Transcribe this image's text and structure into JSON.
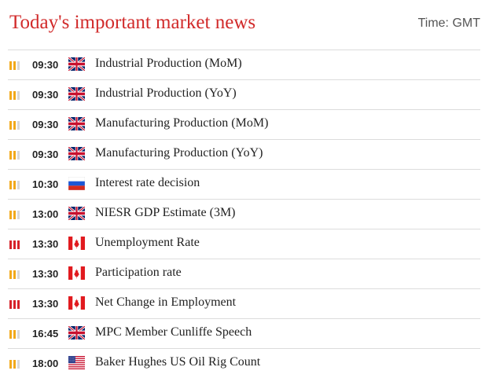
{
  "header": {
    "title": "Today's important market news",
    "timezone": "Time: GMT"
  },
  "importance_colors": {
    "medium": "#f2a91b",
    "high": "#d6232a",
    "inactive": "#d8d8d8"
  },
  "events": [
    {
      "importance": 2,
      "time": "09:30",
      "flag": "uk-flag-icon",
      "event": "Industrial Production (MoM)"
    },
    {
      "importance": 2,
      "time": "09:30",
      "flag": "uk-flag-icon",
      "event": "Industrial Production (YoY)"
    },
    {
      "importance": 2,
      "time": "09:30",
      "flag": "uk-flag-icon",
      "event": "Manufacturing Production (MoM)"
    },
    {
      "importance": 2,
      "time": "09:30",
      "flag": "uk-flag-icon",
      "event": "Manufacturing Production (YoY)"
    },
    {
      "importance": 2,
      "time": "10:30",
      "flag": "russia-flag-icon",
      "event": "Interest rate decision"
    },
    {
      "importance": 2,
      "time": "13:00",
      "flag": "uk-flag-icon",
      "event": "NIESR GDP Estimate (3M)"
    },
    {
      "importance": 3,
      "time": "13:30",
      "flag": "canada-flag-icon",
      "event": "Unemployment Rate"
    },
    {
      "importance": 2,
      "time": "13:30",
      "flag": "canada-flag-icon",
      "event": "Participation rate"
    },
    {
      "importance": 3,
      "time": "13:30",
      "flag": "canada-flag-icon",
      "event": "Net Change in Employment"
    },
    {
      "importance": 2,
      "time": "16:45",
      "flag": "uk-flag-icon",
      "event": "MPC Member Cunliffe Speech"
    },
    {
      "importance": 2,
      "time": "18:00",
      "flag": "us-flag-icon",
      "event": "Baker Hughes US Oil Rig Count"
    }
  ]
}
